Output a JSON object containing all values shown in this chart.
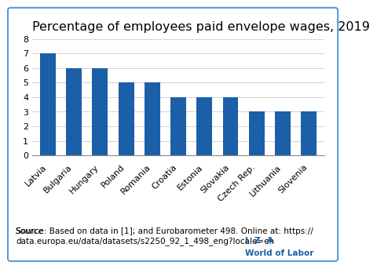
{
  "title": "Percentage of employees paid envelope wages, 2019",
  "categories": [
    "Latvia",
    "Bulgaria",
    "Hungary",
    "Poland",
    "Romania",
    "Croatia",
    "Estonia",
    "Slovakia",
    "Czech Rep.",
    "Lithuania",
    "Slovenia"
  ],
  "values": [
    7,
    6,
    6,
    5,
    5,
    4,
    4,
    4,
    3,
    3,
    3
  ],
  "bar_color": "#1a5fa8",
  "ylim": [
    0,
    8
  ],
  "yticks": [
    0,
    1,
    2,
    3,
    4,
    5,
    6,
    7,
    8
  ],
  "source_text": "Source: Based on data in [1]; and Eurobarometer 498. Online at: https://\ndata.europa.eu/data/datasets/s2250_92_1_498_eng?locale=en",
  "iza_text": "I  Z  A",
  "wol_text": "World of Labor",
  "background_color": "#ffffff",
  "border_color": "#5b9bd5",
  "title_fontsize": 11.5,
  "tick_fontsize": 8,
  "source_fontsize": 7.5,
  "iza_color": "#1a5fa8"
}
